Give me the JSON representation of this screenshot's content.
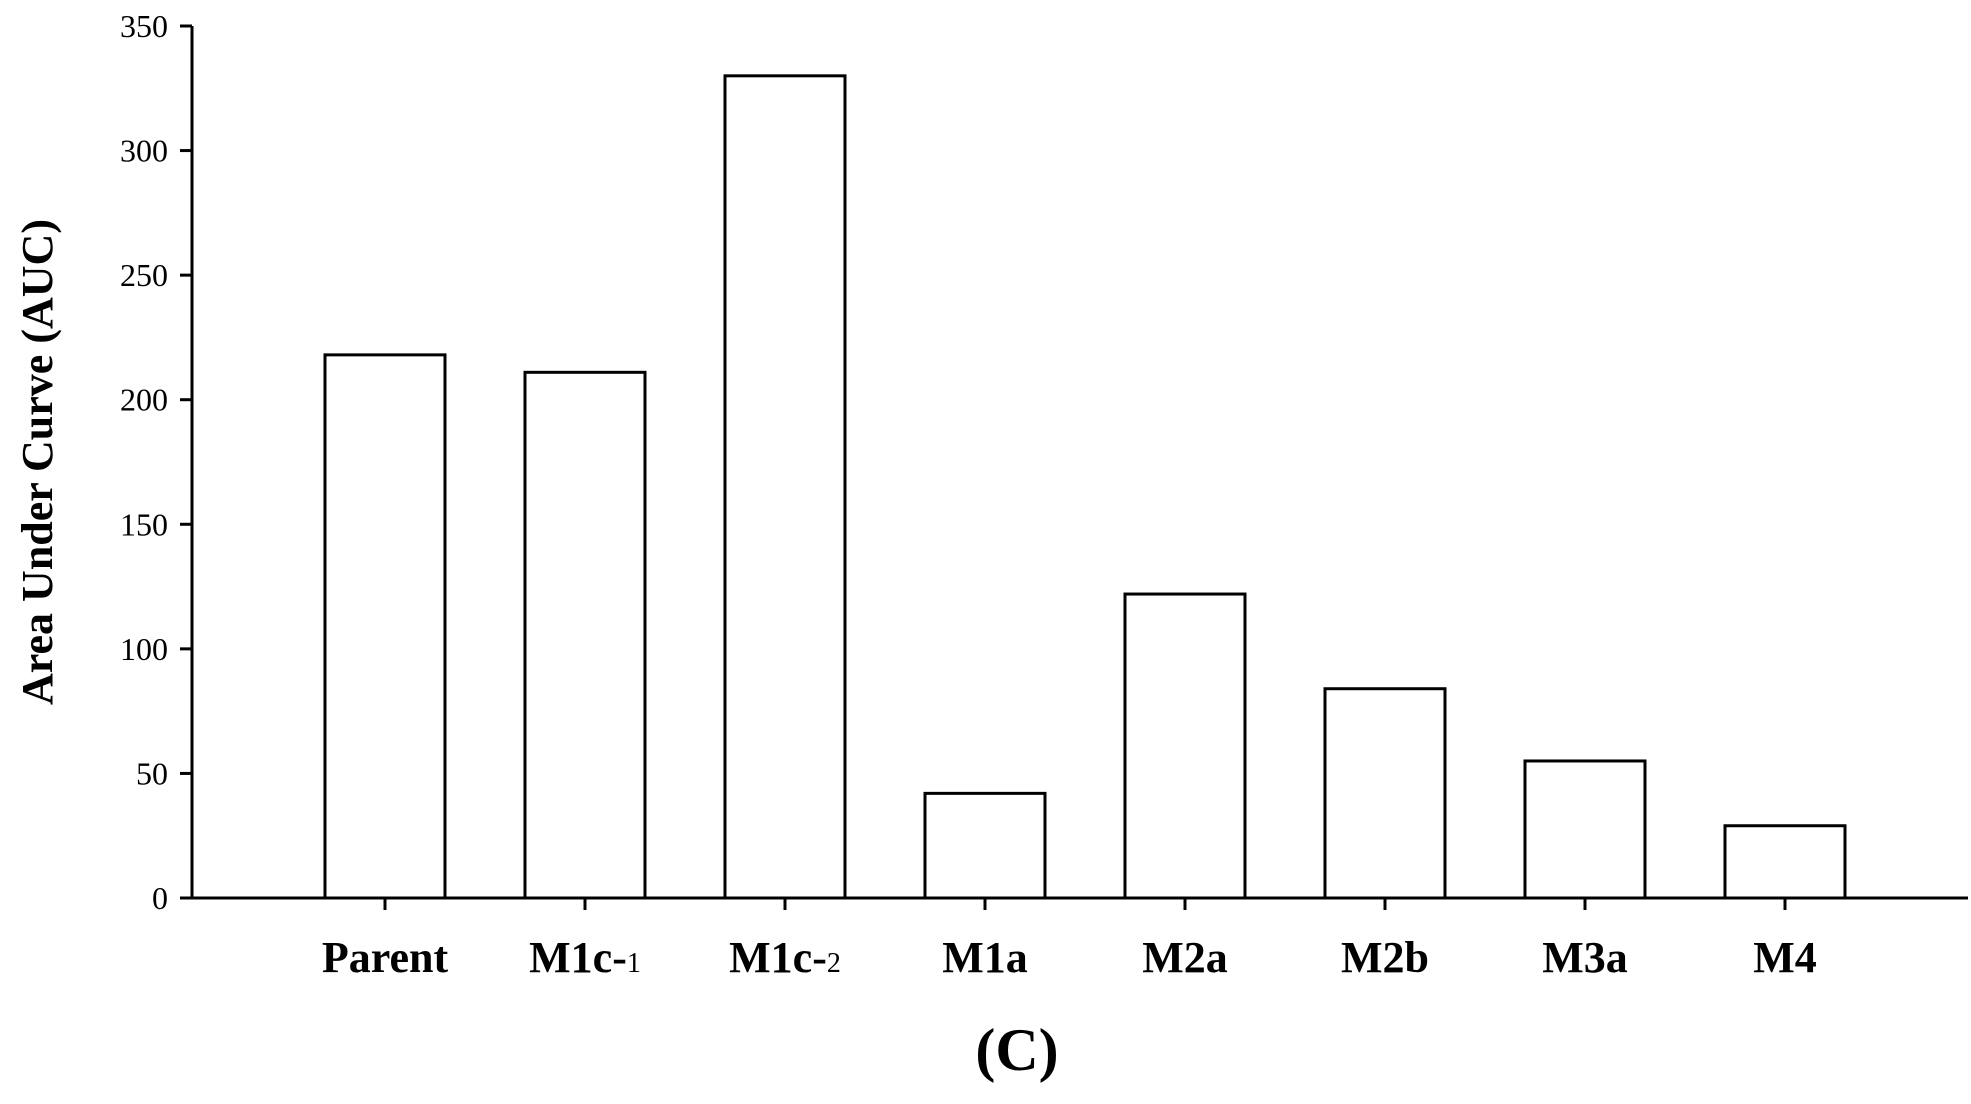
{
  "chart_data": {
    "type": "bar",
    "ylabel": "Area Under Curve (AUC)",
    "xlabel": "",
    "categories": [
      "Parent",
      "M1c-1",
      "M1c-2",
      "M1a",
      "M2a",
      "M2b",
      "M3a",
      "M4"
    ],
    "category_labels": [
      {
        "main": "Parent",
        "sub": ""
      },
      {
        "main": "M1c-",
        "sub": "1"
      },
      {
        "main": "M1c-",
        "sub": "2"
      },
      {
        "main": "M1a",
        "sub": ""
      },
      {
        "main": "M2a",
        "sub": ""
      },
      {
        "main": "M2b",
        "sub": ""
      },
      {
        "main": "M3a",
        "sub": ""
      },
      {
        "main": "M4",
        "sub": ""
      }
    ],
    "values": [
      218,
      211,
      330,
      42,
      122,
      84,
      55,
      29
    ],
    "ylim": [
      0,
      350
    ],
    "yticks": [
      0,
      50,
      100,
      150,
      200,
      250,
      300,
      350
    ],
    "grid": false,
    "bar_fill": "#ffffff",
    "bar_stroke": "#000000"
  },
  "panel_label": "(C)"
}
